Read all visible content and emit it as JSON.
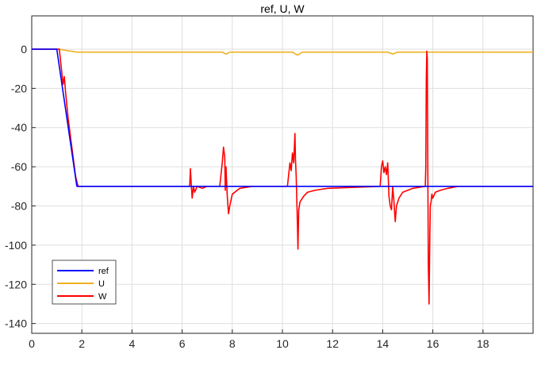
{
  "chart_data": {
    "type": "line",
    "title": "ref, U, W",
    "xlim": [
      0,
      20
    ],
    "ylim": [
      -145,
      17
    ],
    "x_ticks": [
      0,
      2,
      4,
      6,
      8,
      10,
      12,
      14,
      16,
      18
    ],
    "y_ticks": [
      0,
      -20,
      -40,
      -60,
      -80,
      -100,
      -120,
      -140
    ],
    "grid": true,
    "legend_position": "bottom-left",
    "series": [
      {
        "name": "ref",
        "color": "#0000ff",
        "x": [
          0,
          1.0,
          1.8,
          20
        ],
        "y": [
          0,
          0,
          -70,
          -70
        ]
      },
      {
        "name": "U",
        "color": "#edb120",
        "x": [
          0,
          1.1,
          1.3,
          1.8,
          7.6,
          7.75,
          7.9,
          10.4,
          10.6,
          10.8,
          14.2,
          14.4,
          14.6,
          20
        ],
        "y": [
          0,
          0,
          -0.5,
          -1.5,
          -1.5,
          -2.5,
          -1.5,
          -1.5,
          -3,
          -1.5,
          -1.5,
          -2.5,
          -1.5,
          -1.5
        ]
      },
      {
        "name": "W",
        "color": "#ff0000",
        "x": [
          0,
          1.1,
          1.2,
          1.25,
          1.3,
          1.35,
          1.45,
          1.6,
          1.75,
          1.85,
          2.0,
          6.3,
          6.33,
          6.36,
          6.4,
          6.45,
          6.5,
          6.6,
          6.8,
          7.0,
          7.5,
          7.6,
          7.65,
          7.7,
          7.72,
          7.75,
          7.8,
          7.85,
          7.9,
          8.0,
          8.3,
          8.8,
          10.2,
          10.3,
          10.35,
          10.4,
          10.45,
          10.5,
          10.52,
          10.55,
          10.6,
          10.62,
          10.65,
          10.7,
          10.75,
          10.85,
          11.0,
          11.3,
          11.8,
          13.9,
          13.95,
          14.0,
          14.05,
          14.1,
          14.15,
          14.2,
          14.25,
          14.3,
          14.35,
          14.4,
          14.45,
          14.5,
          14.55,
          14.65,
          14.8,
          15.2,
          15.7,
          15.72,
          15.74,
          15.76,
          15.78,
          15.8,
          15.82,
          15.85,
          15.88,
          15.9,
          15.93,
          15.96,
          16.0,
          16.1,
          16.3,
          16.6,
          17.0,
          20
        ],
        "y": [
          0,
          0,
          -12,
          -18,
          -14,
          -22,
          -35,
          -50,
          -65,
          -70,
          -70,
          -70,
          -61,
          -68,
          -76,
          -70,
          -73,
          -70,
          -71,
          -70,
          -70,
          -58,
          -50,
          -55,
          -72,
          -60,
          -75,
          -84,
          -80,
          -74,
          -71,
          -70,
          -70,
          -58,
          -62,
          -53,
          -58,
          -43,
          -56,
          -65,
          -90,
          -102,
          -82,
          -78,
          -77,
          -75,
          -73,
          -72,
          -71,
          -70,
          -60,
          -57,
          -63,
          -60,
          -64,
          -58,
          -75,
          -80,
          -82,
          -70,
          -78,
          -88,
          -80,
          -76,
          -73,
          -71,
          -70,
          -60,
          -15,
          -1,
          -5,
          -60,
          -110,
          -130,
          -95,
          -80,
          -78,
          -74,
          -76,
          -73,
          -72,
          -71,
          -70,
          -70
        ]
      }
    ]
  }
}
